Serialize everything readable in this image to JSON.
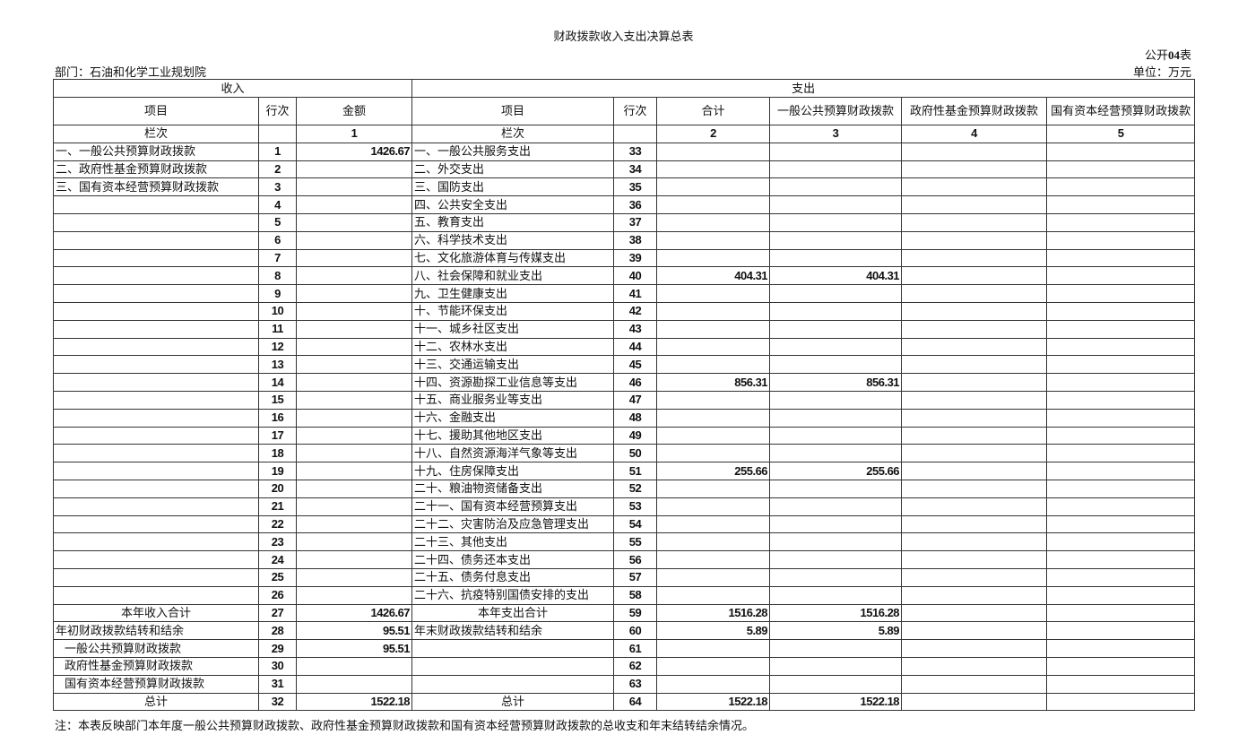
{
  "title": "财政拨款收入支出决算总表",
  "table_no_prefix": "公开",
  "table_no_num": "04",
  "table_no_suffix": "表",
  "department": "部门：石油和化学工业规划院",
  "unit": "单位：万元",
  "headers": {
    "income": "收入",
    "expense": "支出",
    "columns": [
      "项目",
      "行次",
      "金额",
      "项目",
      "行次",
      "合计",
      "一般公共预算财政拨款",
      "政府性基金预算财政拨款",
      "国有资本经营预算财政拨款"
    ],
    "column_index": [
      "栏次",
      "",
      "1",
      "栏次",
      "",
      "2",
      "3",
      "4",
      "5"
    ]
  },
  "rows": [
    [
      "一、一般公共预算财政拨款",
      "1",
      "1426.67",
      "一、一般公共服务支出",
      "33",
      "",
      "",
      "",
      ""
    ],
    [
      "二、政府性基金预算财政拨款",
      "2",
      "",
      "二、外交支出",
      "34",
      "",
      "",
      "",
      ""
    ],
    [
      "三、国有资本经营预算财政拨款",
      "3",
      "",
      "三、国防支出",
      "35",
      "",
      "",
      "",
      ""
    ],
    [
      "",
      "4",
      "",
      "四、公共安全支出",
      "36",
      "",
      "",
      "",
      ""
    ],
    [
      "",
      "5",
      "",
      "五、教育支出",
      "37",
      "",
      "",
      "",
      ""
    ],
    [
      "",
      "6",
      "",
      "六、科学技术支出",
      "38",
      "",
      "",
      "",
      ""
    ],
    [
      "",
      "7",
      "",
      "七、文化旅游体育与传媒支出",
      "39",
      "",
      "",
      "",
      ""
    ],
    [
      "",
      "8",
      "",
      "八、社会保障和就业支出",
      "40",
      "404.31",
      "404.31",
      "",
      ""
    ],
    [
      "",
      "9",
      "",
      "九、卫生健康支出",
      "41",
      "",
      "",
      "",
      ""
    ],
    [
      "",
      "10",
      "",
      "十、节能环保支出",
      "42",
      "",
      "",
      "",
      ""
    ],
    [
      "",
      "11",
      "",
      "十一、城乡社区支出",
      "43",
      "",
      "",
      "",
      ""
    ],
    [
      "",
      "12",
      "",
      "十二、农林水支出",
      "44",
      "",
      "",
      "",
      ""
    ],
    [
      "",
      "13",
      "",
      "十三、交通运输支出",
      "45",
      "",
      "",
      "",
      ""
    ],
    [
      "",
      "14",
      "",
      "十四、资源勘探工业信息等支出",
      "46",
      "856.31",
      "856.31",
      "",
      ""
    ],
    [
      "",
      "15",
      "",
      "十五、商业服务业等支出",
      "47",
      "",
      "",
      "",
      ""
    ],
    [
      "",
      "16",
      "",
      "十六、金融支出",
      "48",
      "",
      "",
      "",
      ""
    ],
    [
      "",
      "17",
      "",
      "十七、援助其他地区支出",
      "49",
      "",
      "",
      "",
      ""
    ],
    [
      "",
      "18",
      "",
      "十八、自然资源海洋气象等支出",
      "50",
      "",
      "",
      "",
      ""
    ],
    [
      "",
      "19",
      "",
      "十九、住房保障支出",
      "51",
      "255.66",
      "255.66",
      "",
      ""
    ],
    [
      "",
      "20",
      "",
      "二十、粮油物资储备支出",
      "52",
      "",
      "",
      "",
      ""
    ],
    [
      "",
      "21",
      "",
      "二十一、国有资本经营预算支出",
      "53",
      "",
      "",
      "",
      ""
    ],
    [
      "",
      "22",
      "",
      "二十二、灾害防治及应急管理支出",
      "54",
      "",
      "",
      "",
      ""
    ],
    [
      "",
      "23",
      "",
      "二十三、其他支出",
      "55",
      "",
      "",
      "",
      ""
    ],
    [
      "",
      "24",
      "",
      "二十四、债务还本支出",
      "56",
      "",
      "",
      "",
      ""
    ],
    [
      "",
      "25",
      "",
      "二十五、债务付息支出",
      "57",
      "",
      "",
      "",
      ""
    ],
    [
      "",
      "26",
      "",
      "二十六、抗疫特别国债安排的支出",
      "58",
      "",
      "",
      "",
      ""
    ],
    [
      "本年收入合计",
      "27",
      "1426.67",
      "本年支出合计",
      "59",
      "1516.28",
      "1516.28",
      "",
      ""
    ],
    [
      "年初财政拨款结转和结余",
      "28",
      "95.51",
      "年末财政拨款结转和结余",
      "60",
      "5.89",
      "5.89",
      "",
      ""
    ],
    [
      "一般公共预算财政拨款",
      "29",
      "95.51",
      "",
      "61",
      "",
      "",
      "",
      ""
    ],
    [
      "政府性基金预算财政拨款",
      "30",
      "",
      "",
      "62",
      "",
      "",
      "",
      ""
    ],
    [
      "国有资本经营预算财政拨款",
      "31",
      "",
      "",
      "63",
      "",
      "",
      "",
      ""
    ],
    [
      "总计",
      "32",
      "1522.18",
      "总计",
      "64",
      "1522.18",
      "1522.18",
      "",
      ""
    ]
  ],
  "note": "注：本表反映部门本年度一般公共预算财政拨款、政府性基金预算财政拨款和国有资本经营预算财政拨款的总收支和年末结转结余情况。"
}
